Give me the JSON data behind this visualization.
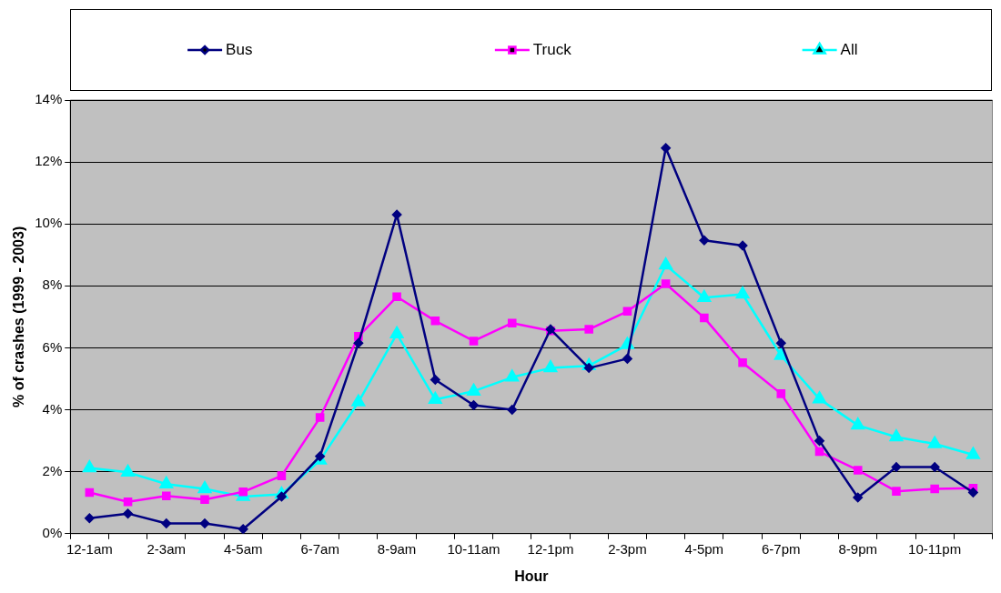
{
  "chart_data": {
    "type": "line",
    "xlabel": "Hour",
    "ylabel": "% of crashes (1999 - 2003)",
    "categories": [
      "12-1am",
      null,
      "2-3am",
      null,
      "4-5am",
      null,
      "6-7am",
      null,
      "8-9am",
      null,
      "10-11am",
      null,
      "12-1pm",
      null,
      "2-3pm",
      null,
      "4-5pm",
      null,
      "6-7pm",
      null,
      "8-9pm",
      null,
      "10-11pm",
      null
    ],
    "series": [
      {
        "name": "Bus",
        "color": "#000080",
        "marker": "diamond",
        "values": [
          0.5,
          0.65,
          0.33,
          0.33,
          0.15,
          1.2,
          2.5,
          6.15,
          10.3,
          4.97,
          4.15,
          4.0,
          6.6,
          5.35,
          5.65,
          12.45,
          9.47,
          9.3,
          6.15,
          3.0,
          1.17,
          2.15,
          2.15,
          1.33
        ]
      },
      {
        "name": "Truck",
        "color": "#ff00ff",
        "marker": "square",
        "values": [
          1.33,
          1.03,
          1.22,
          1.1,
          1.35,
          1.87,
          3.75,
          6.37,
          7.65,
          6.87,
          6.22,
          6.8,
          6.55,
          6.6,
          7.18,
          8.07,
          6.97,
          5.52,
          4.52,
          2.65,
          2.05,
          1.37,
          1.45,
          1.47
        ]
      },
      {
        "name": "All",
        "color": "#00ffff",
        "marker": "triangle",
        "values": [
          2.12,
          1.98,
          1.6,
          1.45,
          1.2,
          1.27,
          2.37,
          4.25,
          6.45,
          4.33,
          4.6,
          5.05,
          5.35,
          5.42,
          6.1,
          8.67,
          7.62,
          7.73,
          5.75,
          4.35,
          3.5,
          3.12,
          2.9,
          2.55
        ]
      }
    ],
    "ylim": [
      0,
      14
    ],
    "yticks": [
      {
        "value": 0,
        "label": "0%"
      },
      {
        "value": 2,
        "label": "2%"
      },
      {
        "value": 4,
        "label": "4%"
      },
      {
        "value": 6,
        "label": "6%"
      },
      {
        "value": 8,
        "label": "8%"
      },
      {
        "value": 10,
        "label": "10%"
      },
      {
        "value": 12,
        "label": "12%"
      },
      {
        "value": 14,
        "label": "14%"
      }
    ],
    "grid": "y",
    "legend": "top",
    "line_style": "solid"
  }
}
